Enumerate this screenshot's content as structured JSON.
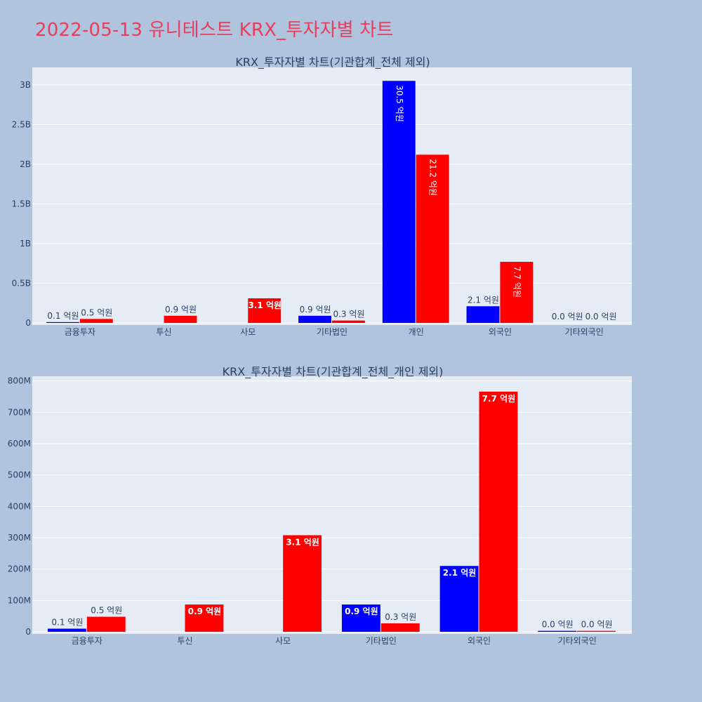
{
  "page": {
    "title": "2022-05-13 유니테스트 KRX_투자자별 차트"
  },
  "colors": {
    "buy": "#0000ff",
    "sell": "#ff0000",
    "plot_bg": "#e5ecf6",
    "grid": "#ffffff",
    "text": "#2a3f5f"
  },
  "chart_data": [
    {
      "type": "bar",
      "title": "KRX_투자자별 차트(기관합계_전체 제외)",
      "categories": [
        "금융투자",
        "투신",
        "사모",
        "기타법인",
        "개인",
        "외국인",
        "기타외국인"
      ],
      "series": [
        {
          "color": "blue",
          "values": [
            10000000,
            0,
            0,
            90000000,
            3050000000,
            210000000,
            0
          ],
          "labels": [
            "0.1 억원",
            "",
            "",
            "0.9 억원",
            "30.5 억원",
            "2.1 억원",
            "0.0 억원"
          ]
        },
        {
          "color": "red",
          "values": [
            50000000,
            90000000,
            310000000,
            30000000,
            2120000000,
            770000000,
            0
          ],
          "labels": [
            "0.5 억원",
            "0.9 억원",
            "3.1 억원",
            "0.3 억원",
            "21.2 억원",
            "7.7 억원",
            "0.0 억원"
          ]
        }
      ],
      "ylim": [
        0,
        3220000000
      ],
      "yticks": [
        0,
        500000000,
        1000000000,
        1500000000,
        2000000000,
        2500000000,
        3000000000
      ],
      "ytick_labels": [
        "0",
        "0.5B",
        "1B",
        "1.5B",
        "2B",
        "2.5B",
        "3B"
      ],
      "grid": true
    },
    {
      "type": "bar",
      "title": "KRX_투자자별 차트(기관합계_전체_개인 제외)",
      "categories": [
        "금융투자",
        "투신",
        "사모",
        "기타법인",
        "외국인",
        "기타외국인"
      ],
      "series": [
        {
          "color": "blue",
          "values": [
            10000000,
            0,
            0,
            87000000,
            210000000,
            3000000
          ],
          "labels": [
            "0.1 억원",
            "",
            "",
            "0.9 억원",
            "2.1 억원",
            "0.0 억원"
          ]
        },
        {
          "color": "red",
          "values": [
            48000000,
            87000000,
            308000000,
            27000000,
            766000000,
            3000000
          ],
          "labels": [
            "0.5 억원",
            "0.9 억원",
            "3.1 억원",
            "0.3 억원",
            "7.7 억원",
            "0.0 억원"
          ]
        }
      ],
      "ylim": [
        0,
        815000000
      ],
      "yticks": [
        0,
        100000000,
        200000000,
        300000000,
        400000000,
        500000000,
        600000000,
        700000000,
        800000000
      ],
      "ytick_labels": [
        "0",
        "100M",
        "200M",
        "300M",
        "400M",
        "500M",
        "600M",
        "700M",
        "800M"
      ],
      "grid": true
    }
  ]
}
